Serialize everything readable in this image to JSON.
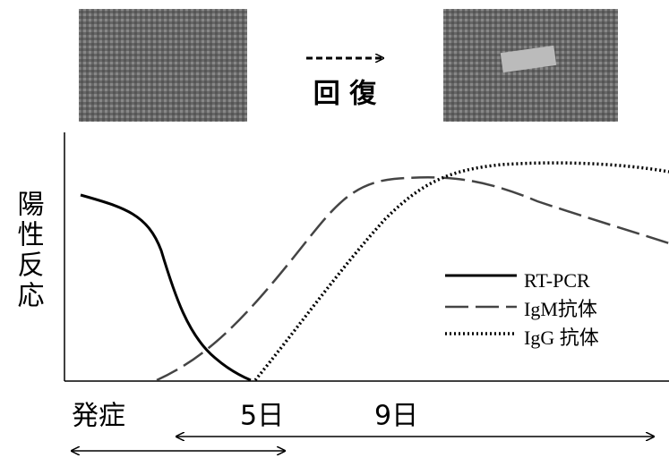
{
  "recovery": "回 復",
  "y_label": "陽性反応",
  "legend": [
    "RT-PCR",
    "IgM抗体",
    "IgG 抗体"
  ],
  "timeline": {
    "onset": "発症",
    "day5": "5日",
    "day9": "9日"
  }
}
